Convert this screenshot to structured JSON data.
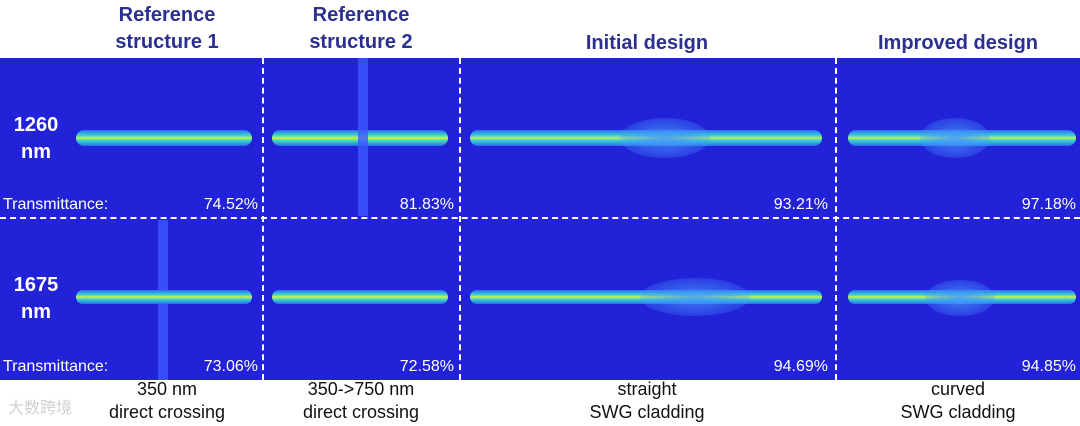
{
  "headers": {
    "ref1": [
      "Reference",
      "structure 1"
    ],
    "ref2": [
      "Reference",
      "structure 2"
    ],
    "initial": "Initial design",
    "improved": "Improved design"
  },
  "rows": [
    {
      "wavelength": [
        "1260",
        "nm"
      ],
      "label": "Transmittance:",
      "values": [
        "74.52%",
        "81.83%",
        "93.21%",
        "97.18%"
      ]
    },
    {
      "wavelength": [
        "1675",
        "nm"
      ],
      "label": "Transmittance:",
      "values": [
        "73.06%",
        "72.58%",
        "94.69%",
        "94.85%"
      ]
    }
  ],
  "captions": {
    "ref1": [
      "350 nm",
      "direct crossing"
    ],
    "ref2": [
      "350->750 nm",
      "direct crossing"
    ],
    "initial": [
      "straight",
      "SWG cladding"
    ],
    "improved": [
      "curved",
      "SWG cladding"
    ]
  },
  "watermark": "大数跨境",
  "colors": {
    "panel_bg": "#2222d8",
    "header_text": "#2b2f8f",
    "beam_core": "#e8f040"
  }
}
